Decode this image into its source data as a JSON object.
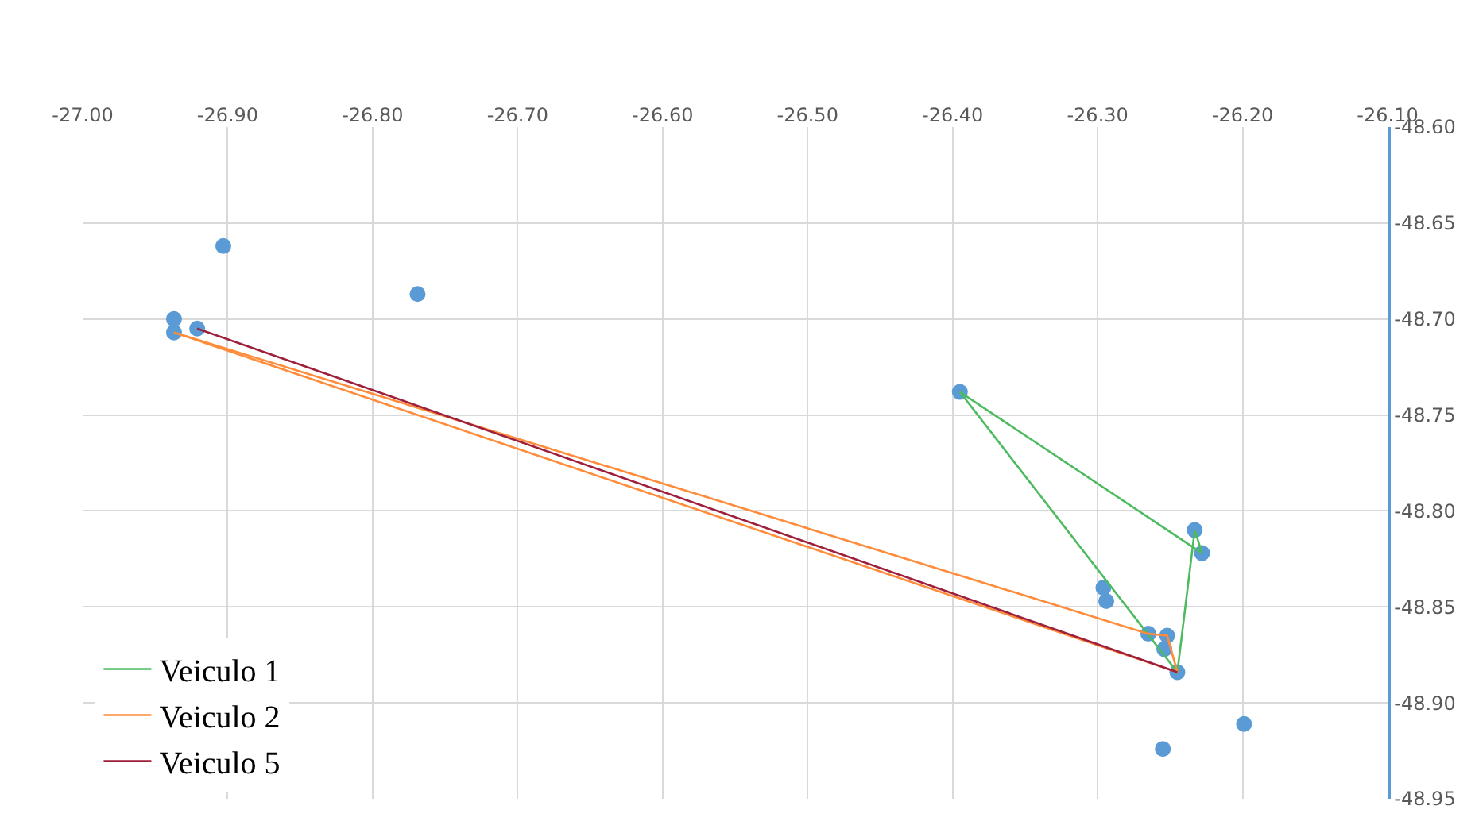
{
  "chart_data": {
    "type": "scatter",
    "series": [
      {
        "color": "#5b9bd5",
        "marker": "circle",
        "x": [
          -26.903,
          -26.769,
          -26.937,
          -26.937,
          -26.921,
          -26.395,
          -26.296,
          -26.294,
          -26.265,
          -26.252,
          -26.254,
          -26.245,
          -26.233,
          -26.228,
          -26.255,
          -26.199
        ],
        "values": [
          -48.662,
          -48.687,
          -48.7,
          -48.707,
          -48.705,
          -48.738,
          -48.84,
          -48.847,
          -48.864,
          -48.865,
          -48.872,
          -48.884,
          -48.81,
          -48.822,
          -48.924,
          -48.911
        ]
      },
      {
        "type": "line",
        "name": "Veiculo 1",
        "color": "#4cbb5f",
        "marker": "none",
        "x": [
          -26.395,
          -26.228
        ],
        "values": [
          -48.738,
          -48.822
        ]
      },
      {
        "type": "line",
        "color": "#4cbb5f",
        "marker": "none",
        "x": [
          -26.228,
          -26.233,
          -26.245,
          -26.395
        ],
        "values": [
          -48.822,
          -48.81,
          -48.884,
          -48.738
        ]
      },
      {
        "type": "line",
        "name": "Veiculo 2",
        "color": "#ff8c3a",
        "marker": "none",
        "x": [
          -26.937,
          -26.265,
          -26.252,
          -26.245
        ],
        "values": [
          -48.707,
          -48.864,
          -48.865,
          -48.884
        ]
      },
      {
        "type": "line",
        "color": "#ff8c3a",
        "marker": "none",
        "x": [
          -26.245,
          -26.937
        ],
        "values": [
          -48.884,
          -48.707
        ]
      },
      {
        "type": "line",
        "name": "Veiculo 5",
        "color": "#9e1f3c",
        "marker": "none",
        "x": [
          -26.921,
          -26.245
        ],
        "values": [
          -48.705,
          -48.884
        ]
      }
    ],
    "xlim": [
      -27.0,
      -26.1
    ],
    "xticks": [
      {
        "value": -27.0,
        "label": "-27.00"
      },
      {
        "value": -26.9,
        "label": "-26.90"
      },
      {
        "value": -26.8,
        "label": "-26.80"
      },
      {
        "value": -26.7,
        "label": "-26.70"
      },
      {
        "value": -26.6,
        "label": "-26.60"
      },
      {
        "value": -26.5,
        "label": "-26.50"
      },
      {
        "value": -26.4,
        "label": "-26.40"
      },
      {
        "value": -26.3,
        "label": "-26.30"
      },
      {
        "value": -26.2,
        "label": "-26.20"
      },
      {
        "value": -26.1,
        "label": "-26.10"
      }
    ],
    "ylim": [
      -48.95,
      -48.6
    ],
    "yticks": [
      {
        "value": -48.95,
        "label": "-48.95"
      },
      {
        "value": -48.9,
        "label": "-48.90"
      },
      {
        "value": -48.85,
        "label": "-48.85"
      },
      {
        "value": -48.8,
        "label": "-48.80"
      },
      {
        "value": -48.75,
        "label": "-48.75"
      },
      {
        "value": -48.7,
        "label": "-48.70"
      },
      {
        "value": -48.65,
        "label": "-48.65"
      },
      {
        "value": -48.6,
        "label": "-48.60"
      }
    ],
    "grid": true,
    "legend": "bottom left",
    "line_style": "solid"
  }
}
